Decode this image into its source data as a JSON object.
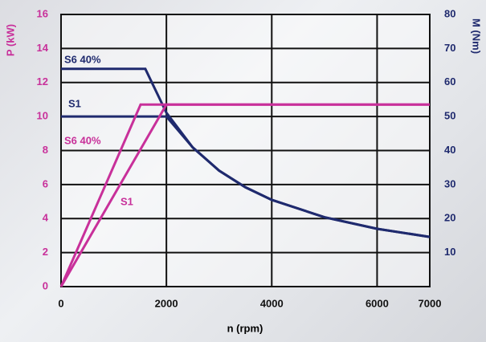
{
  "chart_data": {
    "type": "line",
    "xlabel": "n (rpm)",
    "ylabel": "P (kW)",
    "y2label": "M (Nm)",
    "xlim": [
      0,
      7000
    ],
    "xticks": [
      0,
      2000,
      4000,
      6000,
      7000
    ],
    "ylim": [
      0,
      16
    ],
    "yticks": [
      0,
      2,
      4,
      6,
      8,
      10,
      12,
      14,
      16
    ],
    "y2lim": [
      0,
      80
    ],
    "y2ticks": [
      10,
      20,
      30,
      40,
      50,
      60,
      70,
      80
    ],
    "grid": true,
    "ycolor": "#c8309a",
    "y2color": "#1f2a6e",
    "series": [
      {
        "name": "S6 40%",
        "color": "#1f2a6e",
        "axis": "y2",
        "x": [
          0,
          1600,
          2000,
          2500,
          3000,
          3500,
          4000,
          5000,
          6000,
          7000
        ],
        "values": [
          64,
          64,
          51.1,
          40.9,
          34.1,
          29.2,
          25.5,
          20.4,
          17,
          14.6
        ]
      },
      {
        "name": "S1",
        "color": "#1f2a6e",
        "axis": "y2",
        "x": [
          0,
          2000,
          2500,
          3000,
          3500,
          4000,
          5000,
          6000,
          7000
        ],
        "values": [
          50,
          50,
          40.9,
          34.1,
          29.2,
          25.5,
          20.4,
          17,
          14.6
        ]
      },
      {
        "name": "S6 40%",
        "color": "#c8309a",
        "x": [
          0,
          1510,
          7000
        ],
        "values": [
          0,
          10.7,
          10.7
        ]
      },
      {
        "name": "S1",
        "color": "#c8309a",
        "x": [
          0,
          2000,
          7000
        ],
        "values": [
          0,
          10.7,
          10.7
        ]
      }
    ]
  }
}
